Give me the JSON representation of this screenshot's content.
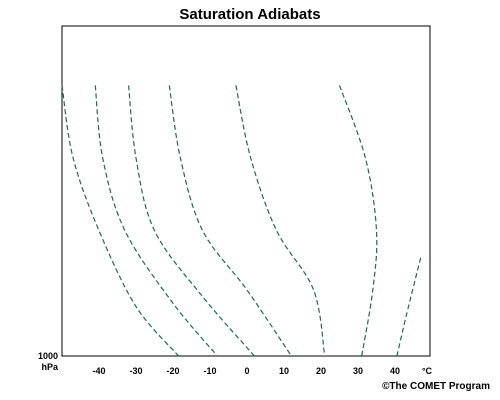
{
  "title": "Saturation Adiabats",
  "credit": "©The COMET Program",
  "colors": {
    "curve": "#1f6b4c",
    "frame": "#000000",
    "background": "#ffffff"
  },
  "chart_data": {
    "type": "line",
    "title": "Saturation Adiabats",
    "pressure_label": "1000",
    "pressure_unit": "hPa",
    "temperature_unit": "°C",
    "x_ticks": [
      -40,
      -30,
      -20,
      -10,
      0,
      10,
      20,
      30,
      40
    ],
    "grid": false,
    "series": [
      {
        "values": [
          [
            -50,
            0.82
          ],
          [
            -47,
            0.6
          ],
          [
            -40,
            0.38
          ],
          [
            -30,
            0.15
          ],
          [
            -18.5,
            0
          ]
        ]
      },
      {
        "values": [
          [
            -41,
            0.82
          ],
          [
            -39,
            0.6
          ],
          [
            -33,
            0.38
          ],
          [
            -20,
            0.16
          ],
          [
            -8,
            0
          ]
        ]
      },
      {
        "values": [
          [
            -32,
            0.82
          ],
          [
            -30,
            0.6
          ],
          [
            -25,
            0.38
          ],
          [
            -12,
            0.18
          ],
          [
            2,
            0
          ]
        ]
      },
      {
        "values": [
          [
            -21,
            0.82
          ],
          [
            -18,
            0.6
          ],
          [
            -12,
            0.38
          ],
          [
            0,
            0.2
          ],
          [
            12,
            0
          ]
        ]
      },
      {
        "values": [
          [
            -3,
            0.82
          ],
          [
            1,
            0.6
          ],
          [
            8,
            0.38
          ],
          [
            18,
            0.2
          ],
          [
            21,
            0
          ]
        ]
      },
      {
        "values": [
          [
            25,
            0.82
          ],
          [
            32,
            0.6
          ],
          [
            35,
            0.38
          ],
          [
            34,
            0.2
          ],
          [
            31,
            0
          ]
        ]
      },
      {
        "values": [
          [
            40.5,
            0
          ],
          [
            43,
            0.12
          ],
          [
            47,
            0.3
          ]
        ]
      }
    ]
  }
}
